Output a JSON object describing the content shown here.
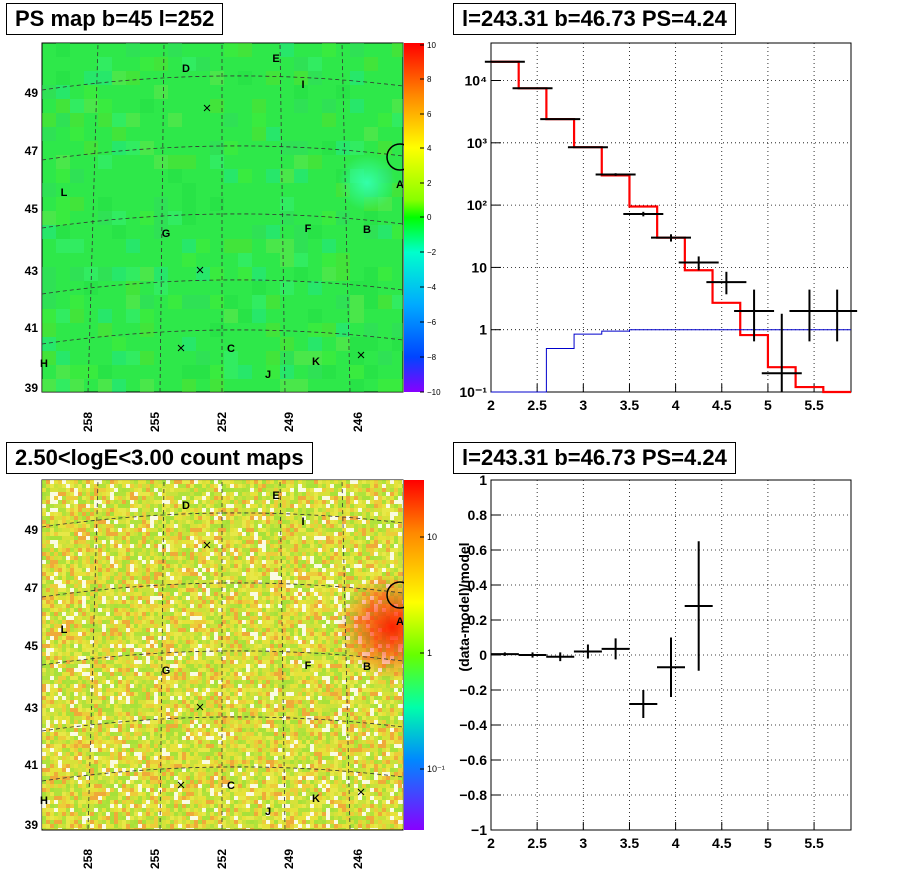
{
  "titles": {
    "ps_map": "PS map b=45 l=252",
    "spectrum": "l=243.31 b=46.73 PS=4.24",
    "count_map": "2.50<logE<3.00 count maps",
    "residual": "l=243.31 b=46.73 PS=4.24"
  },
  "maps": {
    "lat_ticks": [
      "49",
      "47",
      "45",
      "43",
      "41",
      "39"
    ],
    "lon_ticks": [
      "258",
      "255",
      "252",
      "249",
      "246"
    ],
    "sources": [
      "D",
      "E",
      "I",
      "L",
      "G",
      "F",
      "B",
      "A",
      "C",
      "K",
      "J",
      "H"
    ],
    "ps_colorbar_ticks": [
      "10",
      "8",
      "6",
      "4",
      "2",
      "0",
      "−2",
      "−4",
      "−6",
      "−8",
      "−10"
    ],
    "count_colorbar_ticks": [
      "10",
      "1",
      "10⁻¹"
    ]
  },
  "chart_data": [
    {
      "type": "line",
      "title": "l=243.31 b=46.73 PS=4.24",
      "xlabel": "",
      "ylabel": "",
      "xlim": [
        2,
        5.9
      ],
      "ylim": [
        0.1,
        40000
      ],
      "log_y": true,
      "grid": true,
      "x_ticks": [
        2,
        2.5,
        3,
        3.5,
        4,
        4.5,
        5,
        5.5
      ],
      "y_tick_labels": [
        "10⁴",
        "10³",
        "10²",
        "10",
        "1",
        "10⁻¹"
      ],
      "series": [
        {
          "color": "#ff0000",
          "style": "step",
          "edges": [
            2,
            2.3,
            2.6,
            2.9,
            3.2,
            3.5,
            3.8,
            4.1,
            4.4,
            4.7,
            5.0,
            5.3,
            5.6,
            5.9
          ],
          "values": [
            20000,
            7500,
            2400,
            850,
            300,
            95,
            30,
            9,
            2.7,
            0.82,
            0.25,
            0.12,
            0.1
          ]
        },
        {
          "color": "#0000cc",
          "style": "step",
          "edges": [
            2,
            2.3,
            2.6,
            2.9,
            3.2,
            3.5,
            3.8,
            4.1,
            4.4,
            4.7,
            5.0,
            5.3,
            5.6,
            5.9
          ],
          "values": [
            0.05,
            0.1,
            0.5,
            0.85,
            0.95,
            1.0,
            1.0,
            1.0,
            1.0,
            1.0,
            1.0,
            1.0,
            1.0
          ]
        },
        {
          "color": "#000000",
          "style": "points",
          "x": [
            2.15,
            2.45,
            2.75,
            3.05,
            3.35,
            3.65,
            3.95,
            4.25,
            4.55,
            4.85,
            5.15,
            5.45,
            5.75
          ],
          "y": [
            20000,
            7500,
            2400,
            850,
            310,
            72,
            30,
            12,
            5.8,
            2.0,
            0.2,
            2.0,
            2.0
          ],
          "y_low": [
            19800,
            7400,
            2350,
            830,
            295,
            66,
            26,
            9,
            3.7,
            0.65,
            0.1,
            0.65,
            0.65
          ],
          "y_high": [
            20200,
            7600,
            2450,
            870,
            325,
            78,
            34,
            15,
            8.5,
            4.4,
            1.8,
            4.4,
            4.4
          ]
        }
      ]
    },
    {
      "type": "scatter",
      "title": "l=243.31 b=46.73 PS=4.24",
      "xlabel": "",
      "ylabel": "(data-model)/model",
      "xlim": [
        2,
        5.9
      ],
      "ylim": [
        -1,
        1
      ],
      "grid": true,
      "x_ticks": [
        2,
        2.5,
        3,
        3.5,
        4,
        4.5,
        5,
        5.5
      ],
      "y_ticks": [
        -1,
        -0.8,
        -0.6,
        -0.4,
        -0.2,
        0,
        0.2,
        0.4,
        0.6,
        0.8,
        1
      ],
      "x": [
        2.15,
        2.45,
        2.75,
        3.05,
        3.35,
        3.65,
        3.95,
        4.25
      ],
      "y": [
        0.005,
        0.0,
        -0.01,
        0.02,
        0.035,
        -0.28,
        -0.07,
        0.28
      ],
      "y_err": [
        0.01,
        0.015,
        0.025,
        0.04,
        0.06,
        0.08,
        0.17,
        0.37
      ]
    }
  ]
}
